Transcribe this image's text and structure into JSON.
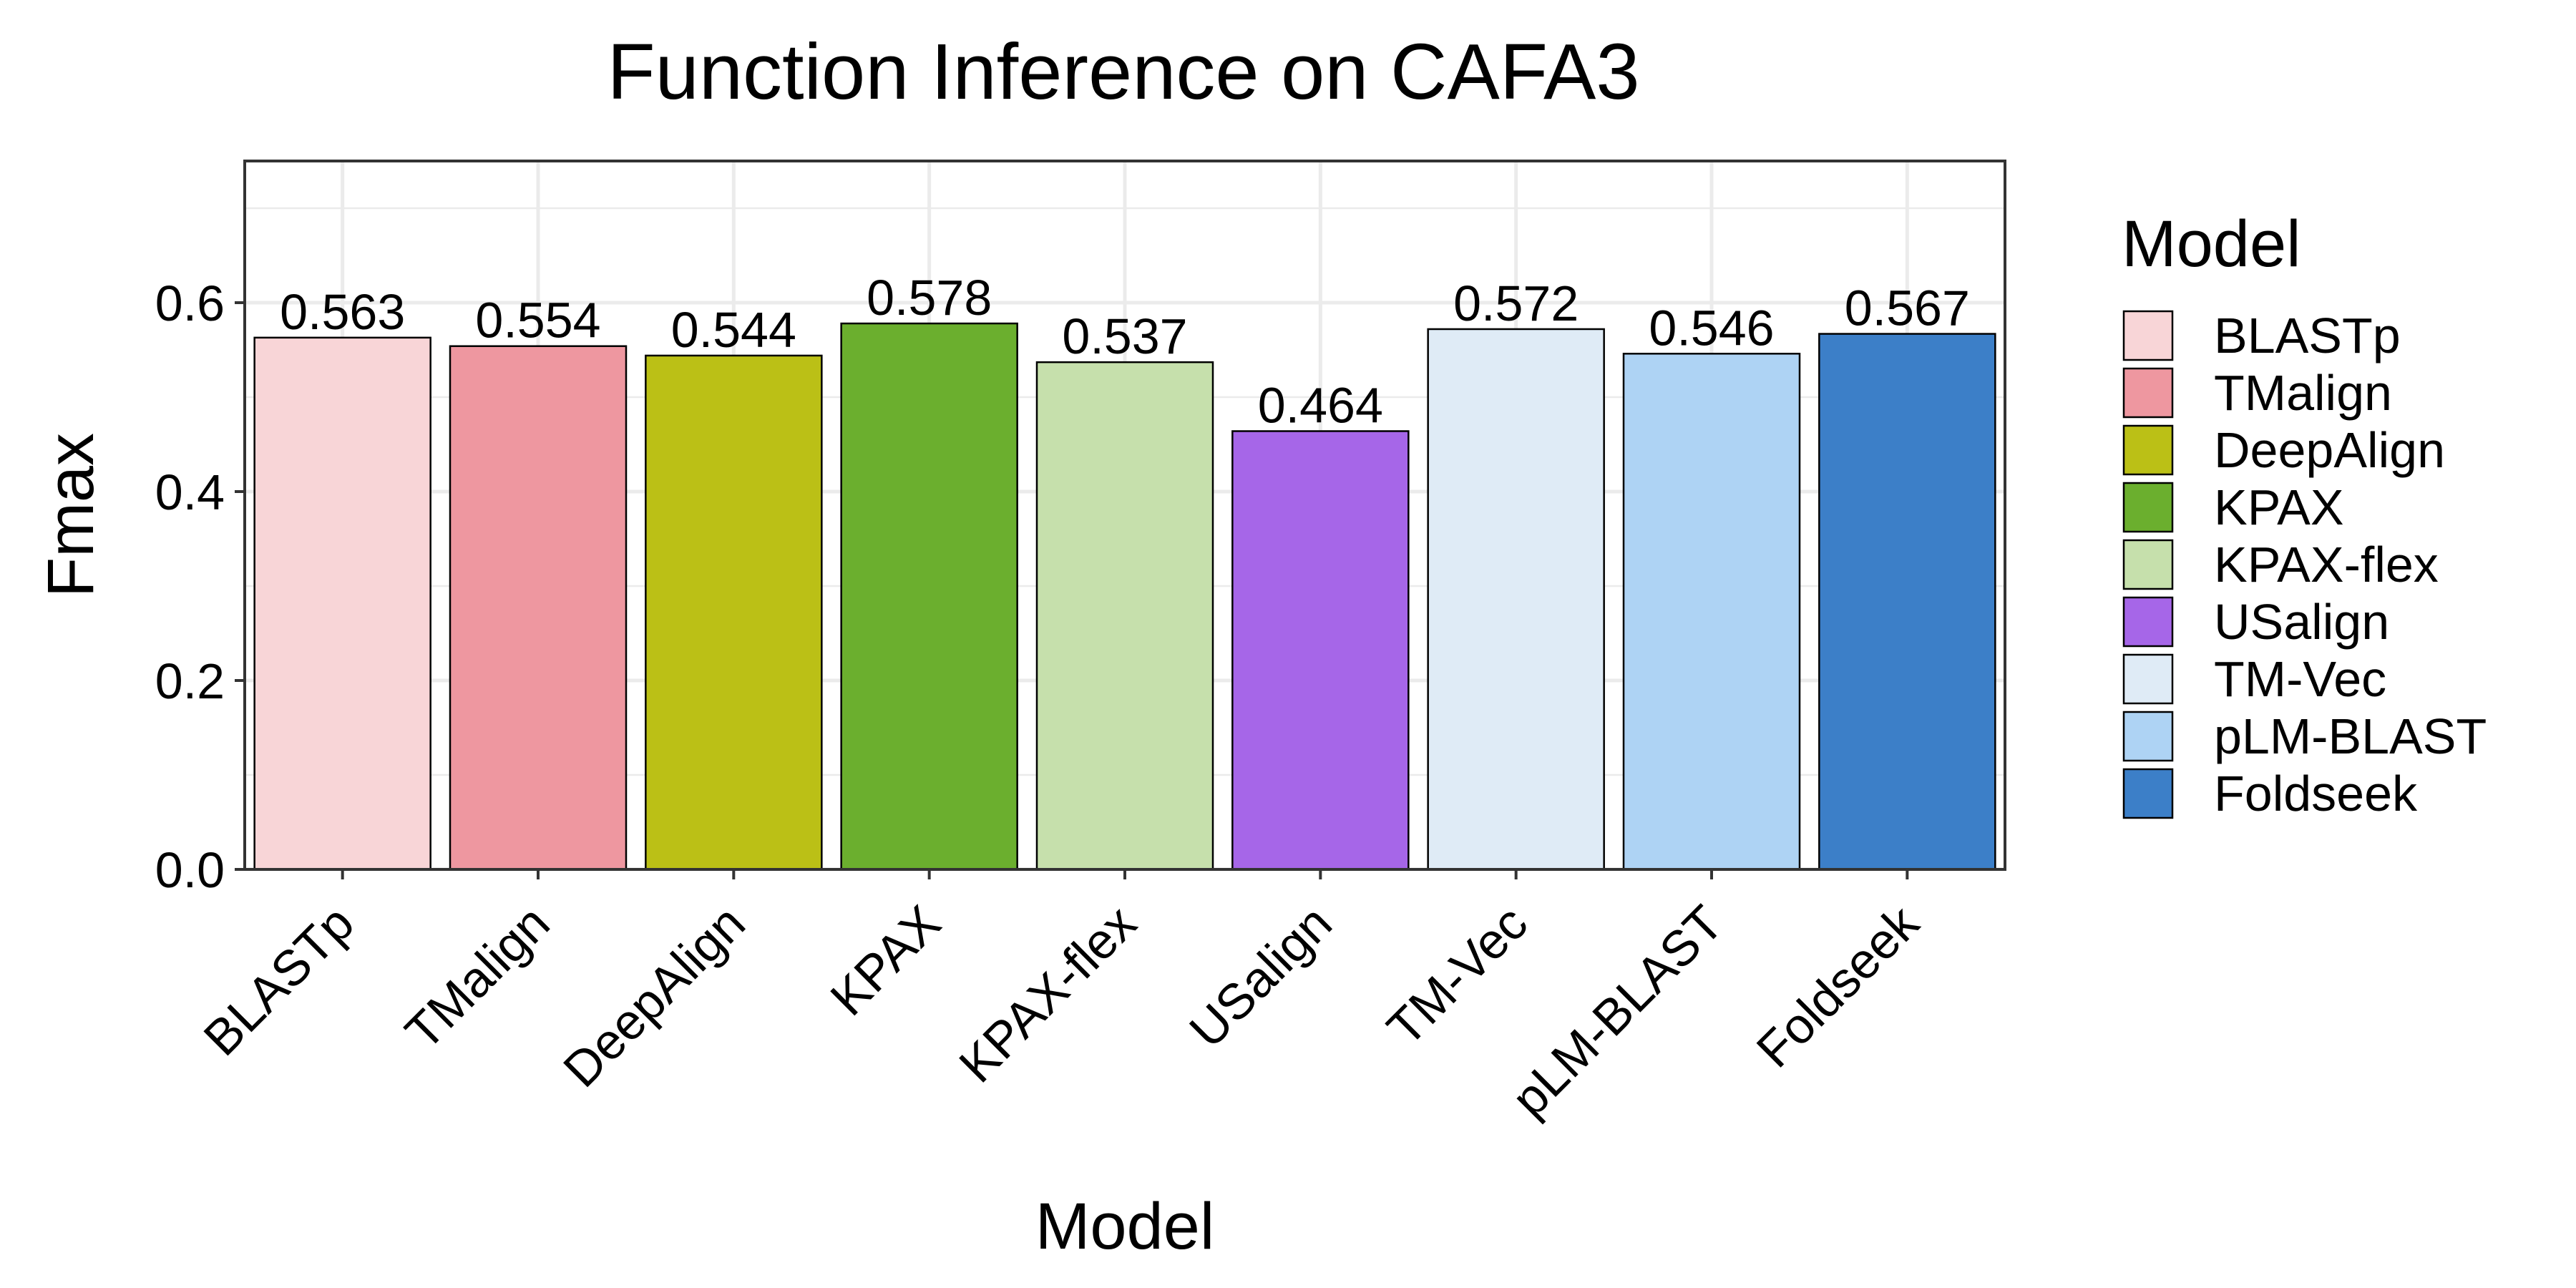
{
  "chart_data": {
    "type": "bar",
    "title": "Function Inference on CAFA3",
    "xlabel": "Model",
    "ylabel": "Fmax",
    "categories": [
      "BLASTp",
      "TMalign",
      "DeepAlign",
      "KPAX",
      "KPAX-flex",
      "USalign",
      "TM-Vec",
      "pLM-BLAST",
      "Foldseek"
    ],
    "values": [
      0.563,
      0.554,
      0.544,
      0.578,
      0.537,
      0.464,
      0.572,
      0.546,
      0.567
    ],
    "value_labels": [
      "0.563",
      "0.554",
      "0.544",
      "0.578",
      "0.537",
      "0.464",
      "0.572",
      "0.546",
      "0.567"
    ],
    "colors": [
      "#F8D5D7",
      "#EE97A0",
      "#BBC016",
      "#6BAF2E",
      "#C6E0AC",
      "#A666E8",
      "#DFEBF6",
      "#AED3F4",
      "#3C7FC8"
    ],
    "ylim": [
      0,
      0.75
    ],
    "yticks": [
      0.0,
      0.2,
      0.4,
      0.6
    ],
    "ytick_labels": [
      "0.0",
      "0.2",
      "0.4",
      "0.6"
    ],
    "grid": true,
    "legend": {
      "title": "Model",
      "placement": "right",
      "entries": [
        "BLASTp",
        "TMalign",
        "DeepAlign",
        "KPAX",
        "KPAX-flex",
        "USalign",
        "TM-Vec",
        "pLM-BLAST",
        "Foldseek"
      ]
    }
  }
}
